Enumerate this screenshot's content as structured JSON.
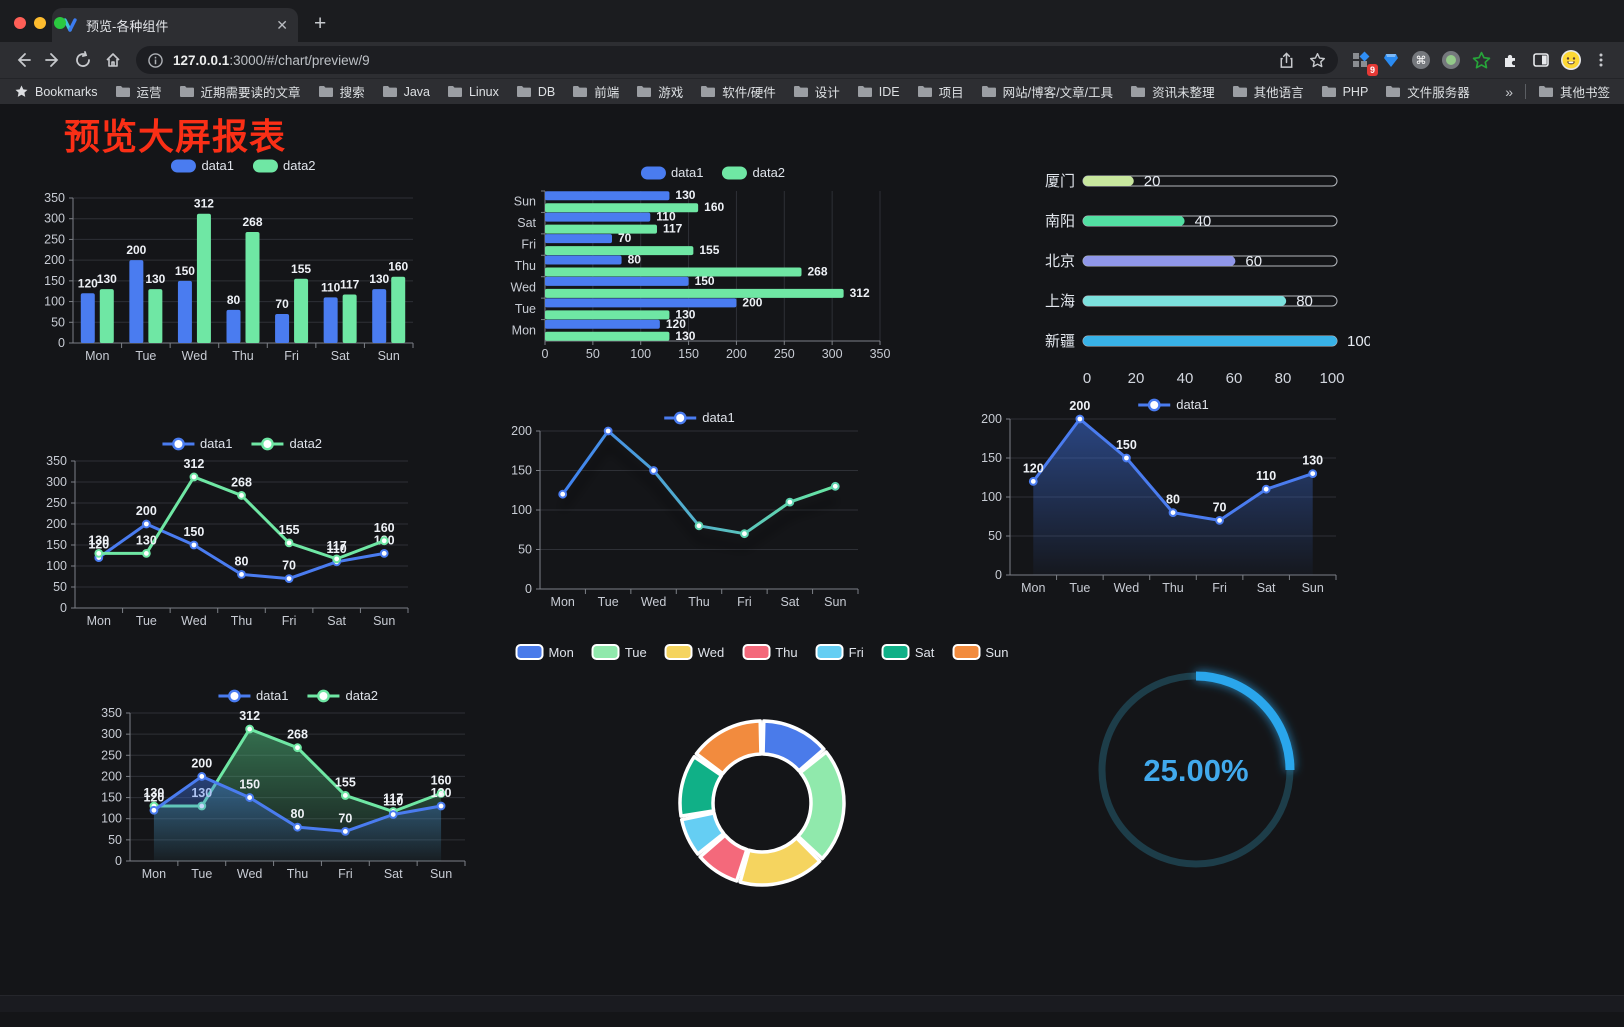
{
  "browser": {
    "tab": {
      "title": "预览-各种组件",
      "close_glyph": "✕"
    },
    "new_tab_glyph": "+",
    "url": {
      "host": "127.0.0.1",
      "rest": ":3000/#/chart/preview/9"
    },
    "extensions": {
      "badge": "9"
    },
    "bookmarks": {
      "label": "Bookmarks",
      "folders": [
        "运营",
        "近期需要读的文章",
        "搜索",
        "Java",
        "Linux",
        "DB",
        "前端",
        "游戏",
        "软件/硬件",
        "设计",
        "IDE",
        "项目",
        "网站/博客/文章/工具",
        "资讯未整理",
        "其他语言",
        "PHP",
        "文件服务器"
      ],
      "overflow_glyph": "»",
      "other_label": "其他书签"
    }
  },
  "page": {
    "title": "预览大屏报表"
  },
  "colors": {
    "data1": "#4a7cf0",
    "data2": "#6fe7a4",
    "title_red": "#fa2f16"
  },
  "charts": {
    "grouped_bar": {
      "type": "bar",
      "categories": [
        "Mon",
        "Tue",
        "Wed",
        "Thu",
        "Fri",
        "Sat",
        "Sun"
      ],
      "series": [
        {
          "name": "data1",
          "color": "#4a7cf0",
          "values": [
            120,
            200,
            150,
            80,
            70,
            110,
            130
          ]
        },
        {
          "name": "data2",
          "color": "#6fe7a4",
          "values": [
            130,
            130,
            312,
            268,
            155,
            117,
            160
          ]
        }
      ],
      "ymax": 350,
      "ystep": 50
    },
    "horizontal_bar": {
      "type": "hbar",
      "categories": [
        "Sun",
        "Sat",
        "Fri",
        "Thu",
        "Wed",
        "Tue",
        "Mon"
      ],
      "series": [
        {
          "name": "data1",
          "color": "#4a7cf0",
          "values": [
            130,
            110,
            70,
            80,
            150,
            200,
            120
          ]
        },
        {
          "name": "data2",
          "color": "#6fe7a4",
          "values": [
            160,
            117,
            155,
            268,
            312,
            130,
            130
          ]
        }
      ],
      "xmax": 350,
      "xstep": 50
    },
    "city_progress": {
      "type": "progress",
      "rows": [
        {
          "label": "厦门",
          "value": 20,
          "color": "#c8e79e"
        },
        {
          "label": "南阳",
          "value": 40,
          "color": "#52dfa2"
        },
        {
          "label": "北京",
          "value": 60,
          "color": "#9097e9"
        },
        {
          "label": "上海",
          "value": 80,
          "color": "#7ce1dd"
        },
        {
          "label": "新疆",
          "value": 100,
          "color": "#38b2e7"
        }
      ],
      "axis_ticks": [
        0,
        20,
        40,
        60,
        80,
        100
      ],
      "max": 100
    },
    "two_line": {
      "type": "line",
      "categories": [
        "Mon",
        "Tue",
        "Wed",
        "Thu",
        "Fri",
        "Sat",
        "Sun"
      ],
      "series": [
        {
          "name": "data1",
          "color": "#4a7cf0",
          "values": [
            120,
            200,
            150,
            80,
            70,
            110,
            130
          ],
          "labels": true
        },
        {
          "name": "data2",
          "color": "#6fe7a4",
          "values": [
            130,
            130,
            312,
            268,
            155,
            117,
            160
          ],
          "labels": true
        }
      ],
      "ymax": 350,
      "ystep": 50
    },
    "gradient_line": {
      "type": "line",
      "categories": [
        "Mon",
        "Tue",
        "Wed",
        "Thu",
        "Fri",
        "Sat",
        "Sun"
      ],
      "series": [
        {
          "name": "data1",
          "color": "#4a7cf0",
          "values": [
            120,
            200,
            150,
            80,
            70,
            110,
            130
          ],
          "gradient": [
            "#3f80f2",
            "#68e7a1"
          ],
          "shadow": true
        }
      ],
      "ymax": 200,
      "ystep": 50
    },
    "area_line": {
      "type": "line",
      "categories": [
        "Mon",
        "Tue",
        "Wed",
        "Thu",
        "Fri",
        "Sat",
        "Sun"
      ],
      "series": [
        {
          "name": "data1",
          "color": "#4a7cf0",
          "values": [
            120,
            200,
            150,
            80,
            70,
            110,
            130
          ],
          "labels": true,
          "area": [
            "rgba(64,118,235,0.50)",
            "rgba(64,118,235,0.03)"
          ]
        }
      ],
      "ymax": 200,
      "ystep": 50
    },
    "two_area": {
      "type": "line",
      "categories": [
        "Mon",
        "Tue",
        "Wed",
        "Thu",
        "Fri",
        "Sat",
        "Sun"
      ],
      "series": [
        {
          "name": "data2",
          "color": "#6fe7a4",
          "values": [
            130,
            130,
            312,
            268,
            155,
            117,
            160
          ],
          "labels": true,
          "area": [
            "rgba(84,200,132,0.50)",
            "rgba(84,200,132,0.03)"
          ]
        },
        {
          "name": "data1",
          "color": "#4a7cf0",
          "values": [
            120,
            200,
            150,
            80,
            70,
            110,
            130
          ],
          "labels": true,
          "area": [
            "rgba(64,118,235,0.45)",
            "rgba(64,118,235,0.03)"
          ]
        }
      ],
      "legend_order": [
        "data1",
        "data2"
      ],
      "ymax": 350,
      "ystep": 50
    },
    "donut": {
      "type": "pie",
      "items": [
        {
          "label": "Mon",
          "value": 120,
          "color": "#4a7bea"
        },
        {
          "label": "Tue",
          "value": 200,
          "color": "#90e9ac"
        },
        {
          "label": "Wed",
          "value": 150,
          "color": "#f5d45f"
        },
        {
          "label": "Thu",
          "value": 80,
          "color": "#f4697b"
        },
        {
          "label": "Fri",
          "value": 70,
          "color": "#65cef3"
        },
        {
          "label": "Sat",
          "value": 110,
          "color": "#10b087"
        },
        {
          "label": "Sun",
          "value": 130,
          "color": "#f28b3e"
        }
      ]
    },
    "gauge": {
      "type": "gauge",
      "percent": 25,
      "value_label": "25.00%",
      "color": "#2ba6ec",
      "track_color": "#1d3d49",
      "text_color": "#41a9ec"
    }
  }
}
